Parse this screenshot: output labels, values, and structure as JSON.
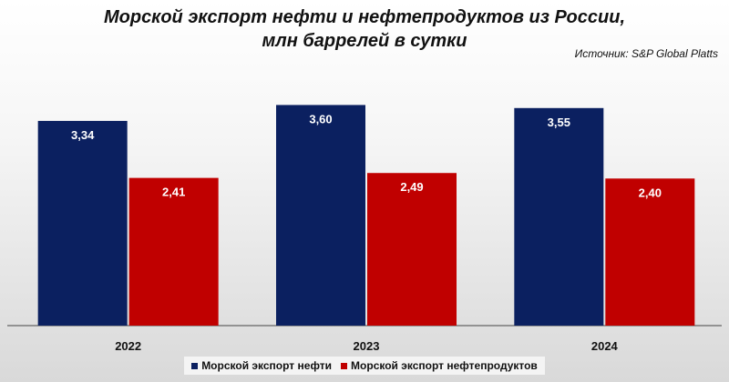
{
  "title_line1": "Морской экспорт нефти и нефтепродуктов из России,",
  "title_line2": "млн баррелей в сутки",
  "source": "Источник: S&P Global Platts",
  "chart_data": {
    "type": "bar",
    "categories": [
      "2022",
      "2023",
      "2024"
    ],
    "series": [
      {
        "name": "Морской экспорт нефти",
        "values": [
          3.34,
          3.6,
          3.55
        ],
        "labels": [
          "3,34",
          "3,60",
          "3,55"
        ],
        "color": "#0b2060"
      },
      {
        "name": "Морской экспорт нефтепродуктов",
        "values": [
          2.41,
          2.49,
          2.4
        ],
        "labels": [
          "2,41",
          "2,49",
          "2,40"
        ],
        "color": "#c00000"
      }
    ],
    "ylim": [
      0,
      4.2
    ],
    "grid": false,
    "legend": "bottom"
  }
}
